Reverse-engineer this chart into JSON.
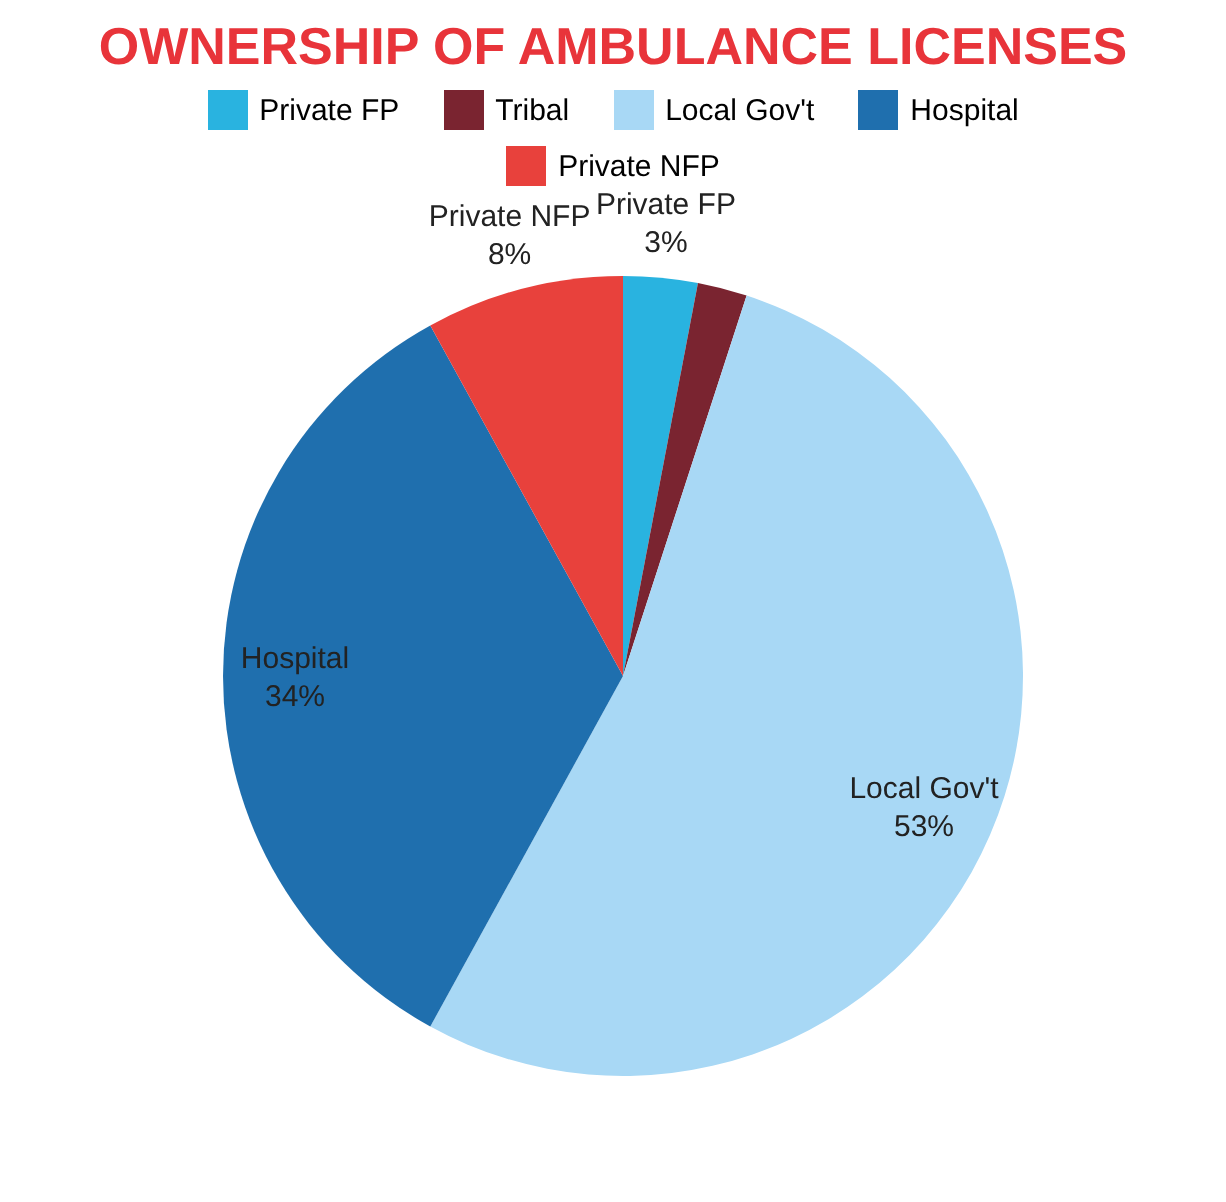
{
  "chart_data": {
    "type": "pie",
    "title": "OWNERSHIP OF AMBULANCE LICENSES",
    "categories": [
      "Private FP",
      "Tribal",
      "Local Gov't",
      "Hospital",
      "Private NFP"
    ],
    "values": [
      3,
      2,
      53,
      34,
      8
    ],
    "value_labels": [
      "3%",
      null,
      "53%",
      "34%",
      "8%"
    ],
    "colors": [
      "#29b3e0",
      "#7a2430",
      "#a8d8f5",
      "#1f6fae",
      "#e8413c"
    ],
    "legend": "top"
  }
}
